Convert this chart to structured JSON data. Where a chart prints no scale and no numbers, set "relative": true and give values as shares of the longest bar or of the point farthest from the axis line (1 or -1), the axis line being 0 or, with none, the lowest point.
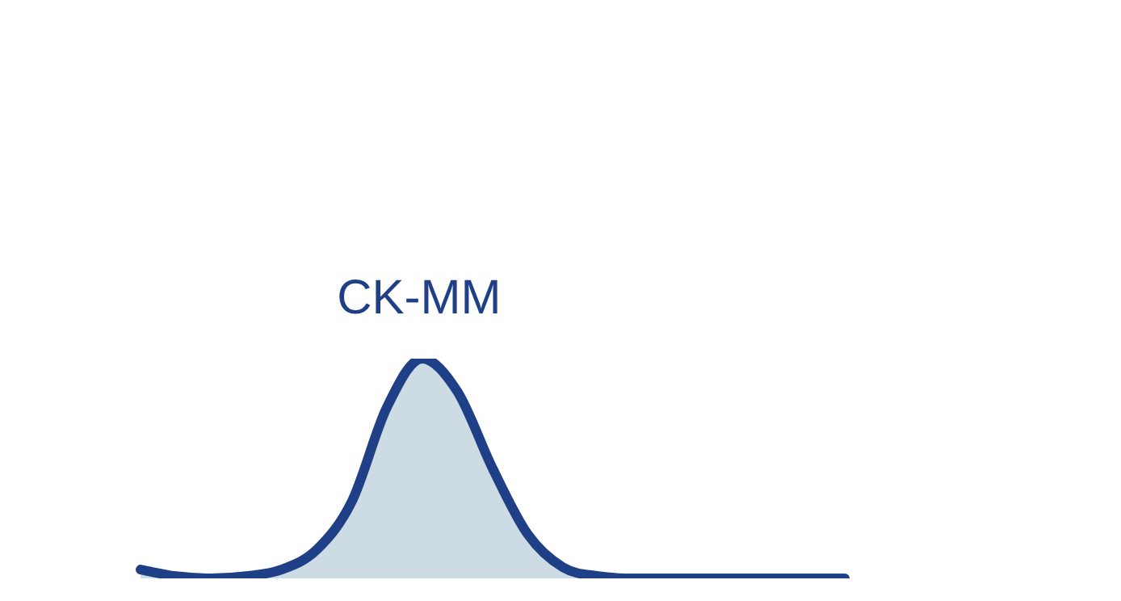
{
  "chart_data": {
    "type": "area",
    "relative": true,
    "categories": [
      null,
      null,
      null,
      null,
      null,
      null,
      null,
      null,
      null,
      null,
      null,
      null,
      null,
      null,
      null,
      null,
      null,
      null,
      null,
      null,
      null
    ],
    "series": [
      {
        "color": "#1f3f86",
        "values": [
          0.04,
          0.01,
          0,
          0.01,
          0.04,
          0.13,
          0.35,
          0.78,
          1,
          0.85,
          0.5,
          0.2,
          0.05,
          0.01,
          0,
          0,
          0,
          0,
          0,
          0,
          0
        ]
      }
    ],
    "annotations": [
      "CK-MM"
    ],
    "grid": false,
    "legend": false,
    "marker": "none",
    "line_style": "solid"
  }
}
